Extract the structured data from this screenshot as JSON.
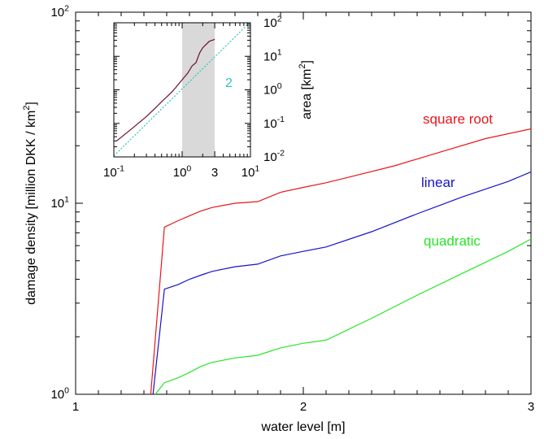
{
  "chart_data": {
    "type": "line",
    "title": "",
    "xlabel": "water level [m]",
    "ylabel": "damage density  [million DKK / km",
    "ylabel_sup": "2",
    "ylabel_close": "]",
    "xlim": [
      1,
      3
    ],
    "ylim": [
      1,
      100
    ],
    "yscale": "log",
    "grid": false,
    "x_ticks": [
      {
        "value": 1,
        "label": "1"
      },
      {
        "value": 2,
        "label": "2"
      },
      {
        "value": 3,
        "label": "3"
      }
    ],
    "y_ticks": [
      {
        "value": 1,
        "base": "10",
        "exp": "0"
      },
      {
        "value": 10,
        "base": "10",
        "exp": "1"
      },
      {
        "value": 100,
        "base": "10",
        "exp": "2"
      }
    ],
    "series": [
      {
        "name": "square root",
        "color": "#e8161b",
        "x": [
          1.33,
          1.39,
          1.45,
          1.5,
          1.55,
          1.6,
          1.7,
          1.8,
          1.9,
          2.0,
          2.1,
          2.2,
          2.4,
          2.6,
          2.8,
          3.0
        ],
        "y": [
          1.0,
          7.5,
          8.1,
          8.6,
          9.1,
          9.5,
          10.0,
          10.2,
          11.4,
          12.1,
          12.8,
          13.7,
          15.7,
          18.5,
          21.8,
          24.5
        ]
      },
      {
        "name": "linear",
        "color": "#1515c8",
        "x": [
          1.34,
          1.39,
          1.45,
          1.5,
          1.55,
          1.6,
          1.7,
          1.8,
          1.9,
          2.0,
          2.1,
          2.3,
          2.5,
          2.7,
          2.9,
          3.0
        ],
        "y": [
          1.0,
          3.55,
          3.75,
          4.0,
          4.2,
          4.4,
          4.65,
          4.8,
          5.3,
          5.6,
          5.9,
          7.1,
          8.8,
          10.8,
          13.0,
          14.6
        ]
      },
      {
        "name": "quadratic",
        "color": "#27e527",
        "x": [
          1.35,
          1.39,
          1.45,
          1.5,
          1.55,
          1.6,
          1.7,
          1.8,
          1.9,
          2.0,
          2.1,
          2.3,
          2.5,
          2.7,
          2.9,
          3.0
        ],
        "y": [
          1.0,
          1.15,
          1.22,
          1.3,
          1.4,
          1.47,
          1.55,
          1.6,
          1.75,
          1.85,
          1.92,
          2.5,
          3.3,
          4.3,
          5.6,
          6.5
        ]
      }
    ],
    "inset": {
      "type": "line",
      "xscale": "log",
      "yscale": "log",
      "xlim": [
        0.1,
        10
      ],
      "ylim": [
        0.01,
        100
      ],
      "ylabel": "area  [km",
      "ylabel_sup": "2",
      "ylabel_close": "]",
      "shaded_range": [
        1,
        3
      ],
      "shade_color": "#d9d9d9",
      "x_ticks": [
        {
          "value": 0.1,
          "base": "10",
          "exp": "-1"
        },
        {
          "value": 1,
          "base": "10",
          "exp": "0"
        },
        {
          "value": 3,
          "label": "3"
        },
        {
          "value": 10,
          "base": "10",
          "exp": "1"
        }
      ],
      "y_ticks": [
        {
          "value": 0.01,
          "base": "10",
          "exp": "-2"
        },
        {
          "value": 0.1,
          "base": "10",
          "exp": "-1"
        },
        {
          "value": 1,
          "base": "10",
          "exp": "0"
        },
        {
          "value": 10,
          "base": "10",
          "exp": "1"
        },
        {
          "value": 100,
          "base": "10",
          "exp": "2"
        }
      ],
      "area_curve": {
        "color": "#6b1030",
        "x": [
          0.11,
          0.15,
          0.2,
          0.3,
          0.4,
          0.5,
          0.6,
          0.7,
          0.8,
          1.0,
          1.2,
          1.4,
          1.6,
          1.8,
          2.0,
          2.5,
          3.0
        ],
        "y": [
          0.03,
          0.05,
          0.08,
          0.16,
          0.28,
          0.44,
          0.63,
          0.85,
          1.15,
          2.0,
          3.1,
          5.2,
          6.5,
          12.5,
          18.0,
          28.0,
          32.0
        ]
      },
      "reference_line": {
        "label": "2",
        "color": "#2ec4c4",
        "x": [
          0.1,
          10
        ],
        "y": [
          0.0107,
          107
        ]
      }
    }
  }
}
